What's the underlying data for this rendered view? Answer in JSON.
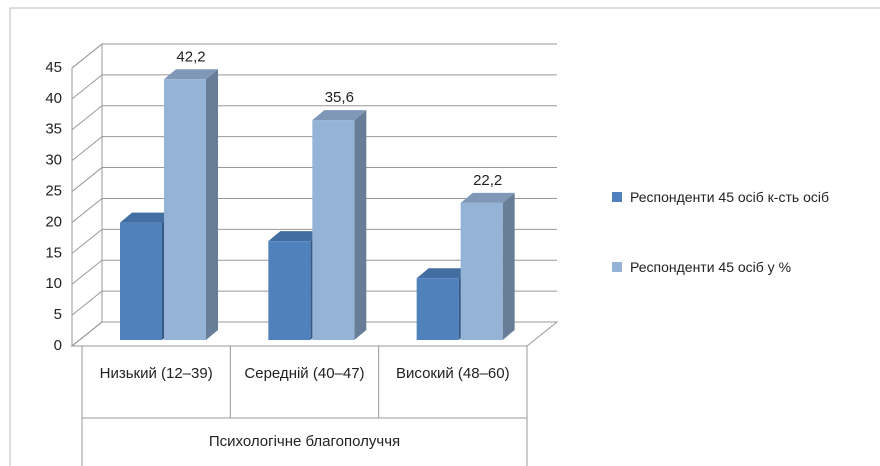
{
  "chart_data": {
    "type": "bar3d",
    "categories": [
      "Низький (12–39)",
      "Середній (40–47)",
      "Високий (48–60)"
    ],
    "category_group": "Психологічне благополуччя",
    "series": [
      {
        "name": "Респонденти  45 осіб к-сть осіб",
        "color": "#4f81bd",
        "values": [
          19,
          16,
          10
        ]
      },
      {
        "name": "Респонденти  45 осіб у %",
        "color": "#95b3d7",
        "values": [
          42.2,
          35.6,
          22.2
        ],
        "value_labels": [
          "42,2",
          "35,6",
          "22,2"
        ]
      }
    ],
    "ylim": [
      0,
      45
    ],
    "yticks": [
      0,
      5,
      10,
      15,
      20,
      25,
      30,
      35,
      40,
      45
    ],
    "grid": true,
    "legend": "right"
  }
}
